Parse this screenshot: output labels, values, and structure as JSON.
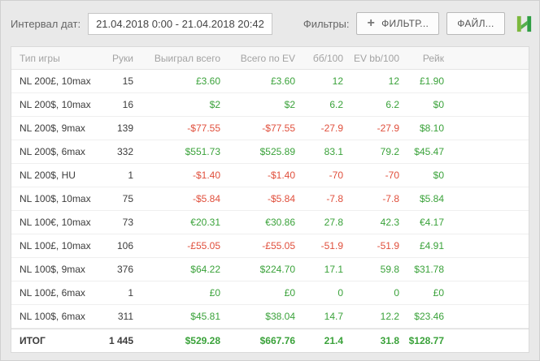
{
  "toolbar": {
    "date_interval_label": "Интервал дат:",
    "date_range": "21.04.2018 0:00 - 21.04.2018 20:42",
    "filters_label": "Фильтры:",
    "filter_button_label": "ФИЛЬТР...",
    "file_button_label": "ФАЙЛ...",
    "logo_icon": "hand2note-h-logo"
  },
  "colors": {
    "positive": "#3aa23a",
    "negative": "#e04f3c",
    "logo_green_light": "#7cb83d",
    "logo_green_mid": "#55b04c",
    "logo_green_dark": "#2f9e44"
  },
  "table": {
    "columns": [
      "Тип игры",
      "Руки",
      "Выиграл всего",
      "Всего по EV",
      "бб/100",
      "EV bb/100",
      "Рейк"
    ],
    "rows": [
      {
        "game": "NL 200£, 10max",
        "hands": "15",
        "won": "£3.60",
        "won_ev": "£3.60",
        "bb100": "12",
        "ev_bb100": "12",
        "rake": "£1.90"
      },
      {
        "game": "NL 200$, 10max",
        "hands": "16",
        "won": "$2",
        "won_ev": "$2",
        "bb100": "6.2",
        "ev_bb100": "6.2",
        "rake": "$0"
      },
      {
        "game": "NL 200$, 9max",
        "hands": "139",
        "won": "-$77.55",
        "won_ev": "-$77.55",
        "bb100": "-27.9",
        "ev_bb100": "-27.9",
        "rake": "$8.10"
      },
      {
        "game": "NL 200$, 6max",
        "hands": "332",
        "won": "$551.73",
        "won_ev": "$525.89",
        "bb100": "83.1",
        "ev_bb100": "79.2",
        "rake": "$45.47"
      },
      {
        "game": "NL 200$, HU",
        "hands": "1",
        "won": "-$1.40",
        "won_ev": "-$1.40",
        "bb100": "-70",
        "ev_bb100": "-70",
        "rake": "$0"
      },
      {
        "game": "NL 100$, 10max",
        "hands": "75",
        "won": "-$5.84",
        "won_ev": "-$5.84",
        "bb100": "-7.8",
        "ev_bb100": "-7.8",
        "rake": "$5.84"
      },
      {
        "game": "NL 100€, 10max",
        "hands": "73",
        "won": "€20.31",
        "won_ev": "€30.86",
        "bb100": "27.8",
        "ev_bb100": "42.3",
        "rake": "€4.17"
      },
      {
        "game": "NL 100£, 10max",
        "hands": "106",
        "won": "-£55.05",
        "won_ev": "-£55.05",
        "bb100": "-51.9",
        "ev_bb100": "-51.9",
        "rake": "£4.91"
      },
      {
        "game": "NL 100$, 9max",
        "hands": "376",
        "won": "$64.22",
        "won_ev": "$224.70",
        "bb100": "17.1",
        "ev_bb100": "59.8",
        "rake": "$31.78"
      },
      {
        "game": "NL 100£, 6max",
        "hands": "1",
        "won": "£0",
        "won_ev": "£0",
        "bb100": "0",
        "ev_bb100": "0",
        "rake": "£0"
      },
      {
        "game": "NL 100$, 6max",
        "hands": "311",
        "won": "$45.81",
        "won_ev": "$38.04",
        "bb100": "14.7",
        "ev_bb100": "12.2",
        "rake": "$23.46"
      }
    ],
    "total": {
      "game": "ИТОГ",
      "hands": "1 445",
      "won": "$529.28",
      "won_ev": "$667.76",
      "bb100": "21.4",
      "ev_bb100": "31.8",
      "rake": "$128.77"
    }
  }
}
